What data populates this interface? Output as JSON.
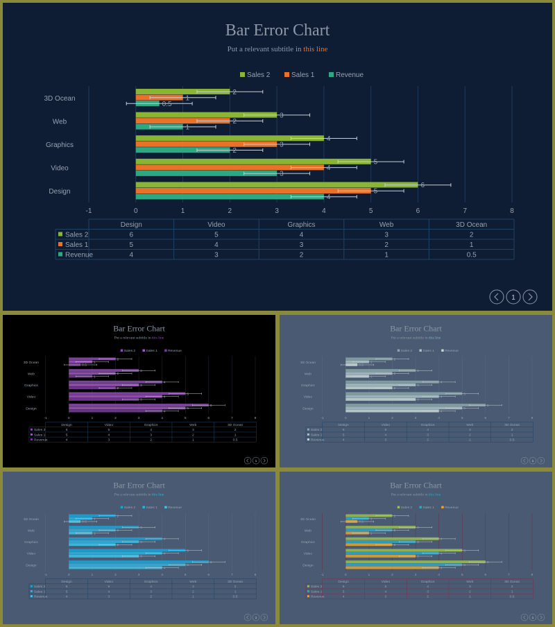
{
  "slides": [
    {
      "theme": "navy",
      "title": "Bar Error Chart",
      "subtitle_prefix": "Put a relevant subtitle in ",
      "subtitle_highlight": "this line",
      "page_number": "1",
      "colors": {
        "bg": "#0e1d33",
        "Sales 2": "#8ab534",
        "Sales 1": "#e8722a",
        "Revenue": "#2ea882",
        "accent": "#e8722a",
        "grid": "#1e3a5c"
      }
    },
    {
      "theme": "black",
      "title": "Bar Error Chart",
      "subtitle_prefix": "Put a relevant subtitle in ",
      "subtitle_highlight": "this line",
      "page_number": "1",
      "colors": {
        "bg": "#000000",
        "Sales 2": "#8e4fb3",
        "Sales 1": "#a35bc4",
        "Revenue": "#7a3f9c",
        "accent": "#8e4fb3",
        "grid": "#2a2a3a"
      }
    },
    {
      "theme": "slate-gray",
      "title": "Bar Error Chart",
      "subtitle_prefix": "Put a relevant subtitle in ",
      "subtitle_highlight": "this line",
      "page_number": "1",
      "colors": {
        "bg": "#4a5a72",
        "Sales 2": "#8aa6a8",
        "Sales 1": "#a9c2c4",
        "Revenue": "#c6d8d6",
        "accent": "#7fb0c0",
        "grid": "#5a6a82"
      }
    },
    {
      "theme": "slate-cyan",
      "title": "Bar Error Chart",
      "subtitle_prefix": "Put a relevant subtitle in ",
      "subtitle_highlight": "this line",
      "page_number": "1",
      "colors": {
        "bg": "#4a5a72",
        "Sales 2": "#1aa3d6",
        "Sales 1": "#2bb4e0",
        "Revenue": "#3cc5ea",
        "accent": "#2bb4e0",
        "grid": "#5a6a82"
      }
    },
    {
      "theme": "slate-multi",
      "title": "Bar Error Chart",
      "subtitle_prefix": "Put a relevant subtitle in ",
      "subtitle_highlight": "this line",
      "page_number": "1",
      "colors": {
        "bg": "#4a5a72",
        "Sales 2": "#9bc04a",
        "Sales 1": "#2ba8c8",
        "Revenue": "#e8a52a",
        "accent": "#2ba8c8",
        "grid": "#6a3048"
      }
    }
  ],
  "chart_data": {
    "type": "bar",
    "orientation": "horizontal",
    "categories": [
      "Design",
      "Video",
      "Graphics",
      "Web",
      "3D Ocean"
    ],
    "series": [
      {
        "name": "Sales 2",
        "values": [
          6,
          5,
          4,
          3,
          2
        ]
      },
      {
        "name": "Sales 1",
        "values": [
          5,
          4,
          3,
          2,
          1
        ]
      },
      {
        "name": "Revenue",
        "values": [
          4,
          3,
          2,
          1,
          0.5
        ]
      }
    ],
    "x_ticks": [
      "-1",
      "0",
      "1",
      "2",
      "3",
      "4",
      "5",
      "6",
      "7",
      "8"
    ],
    "xlim": [
      -1,
      8
    ],
    "error_bars": true,
    "data_labels": [
      "6",
      "5",
      "4",
      "5",
      "4",
      "3",
      "4",
      "3",
      "2",
      "3",
      "2",
      "1",
      "2",
      "1",
      "0.5"
    ],
    "legend": "top-center",
    "grid": true,
    "data_table": true
  }
}
